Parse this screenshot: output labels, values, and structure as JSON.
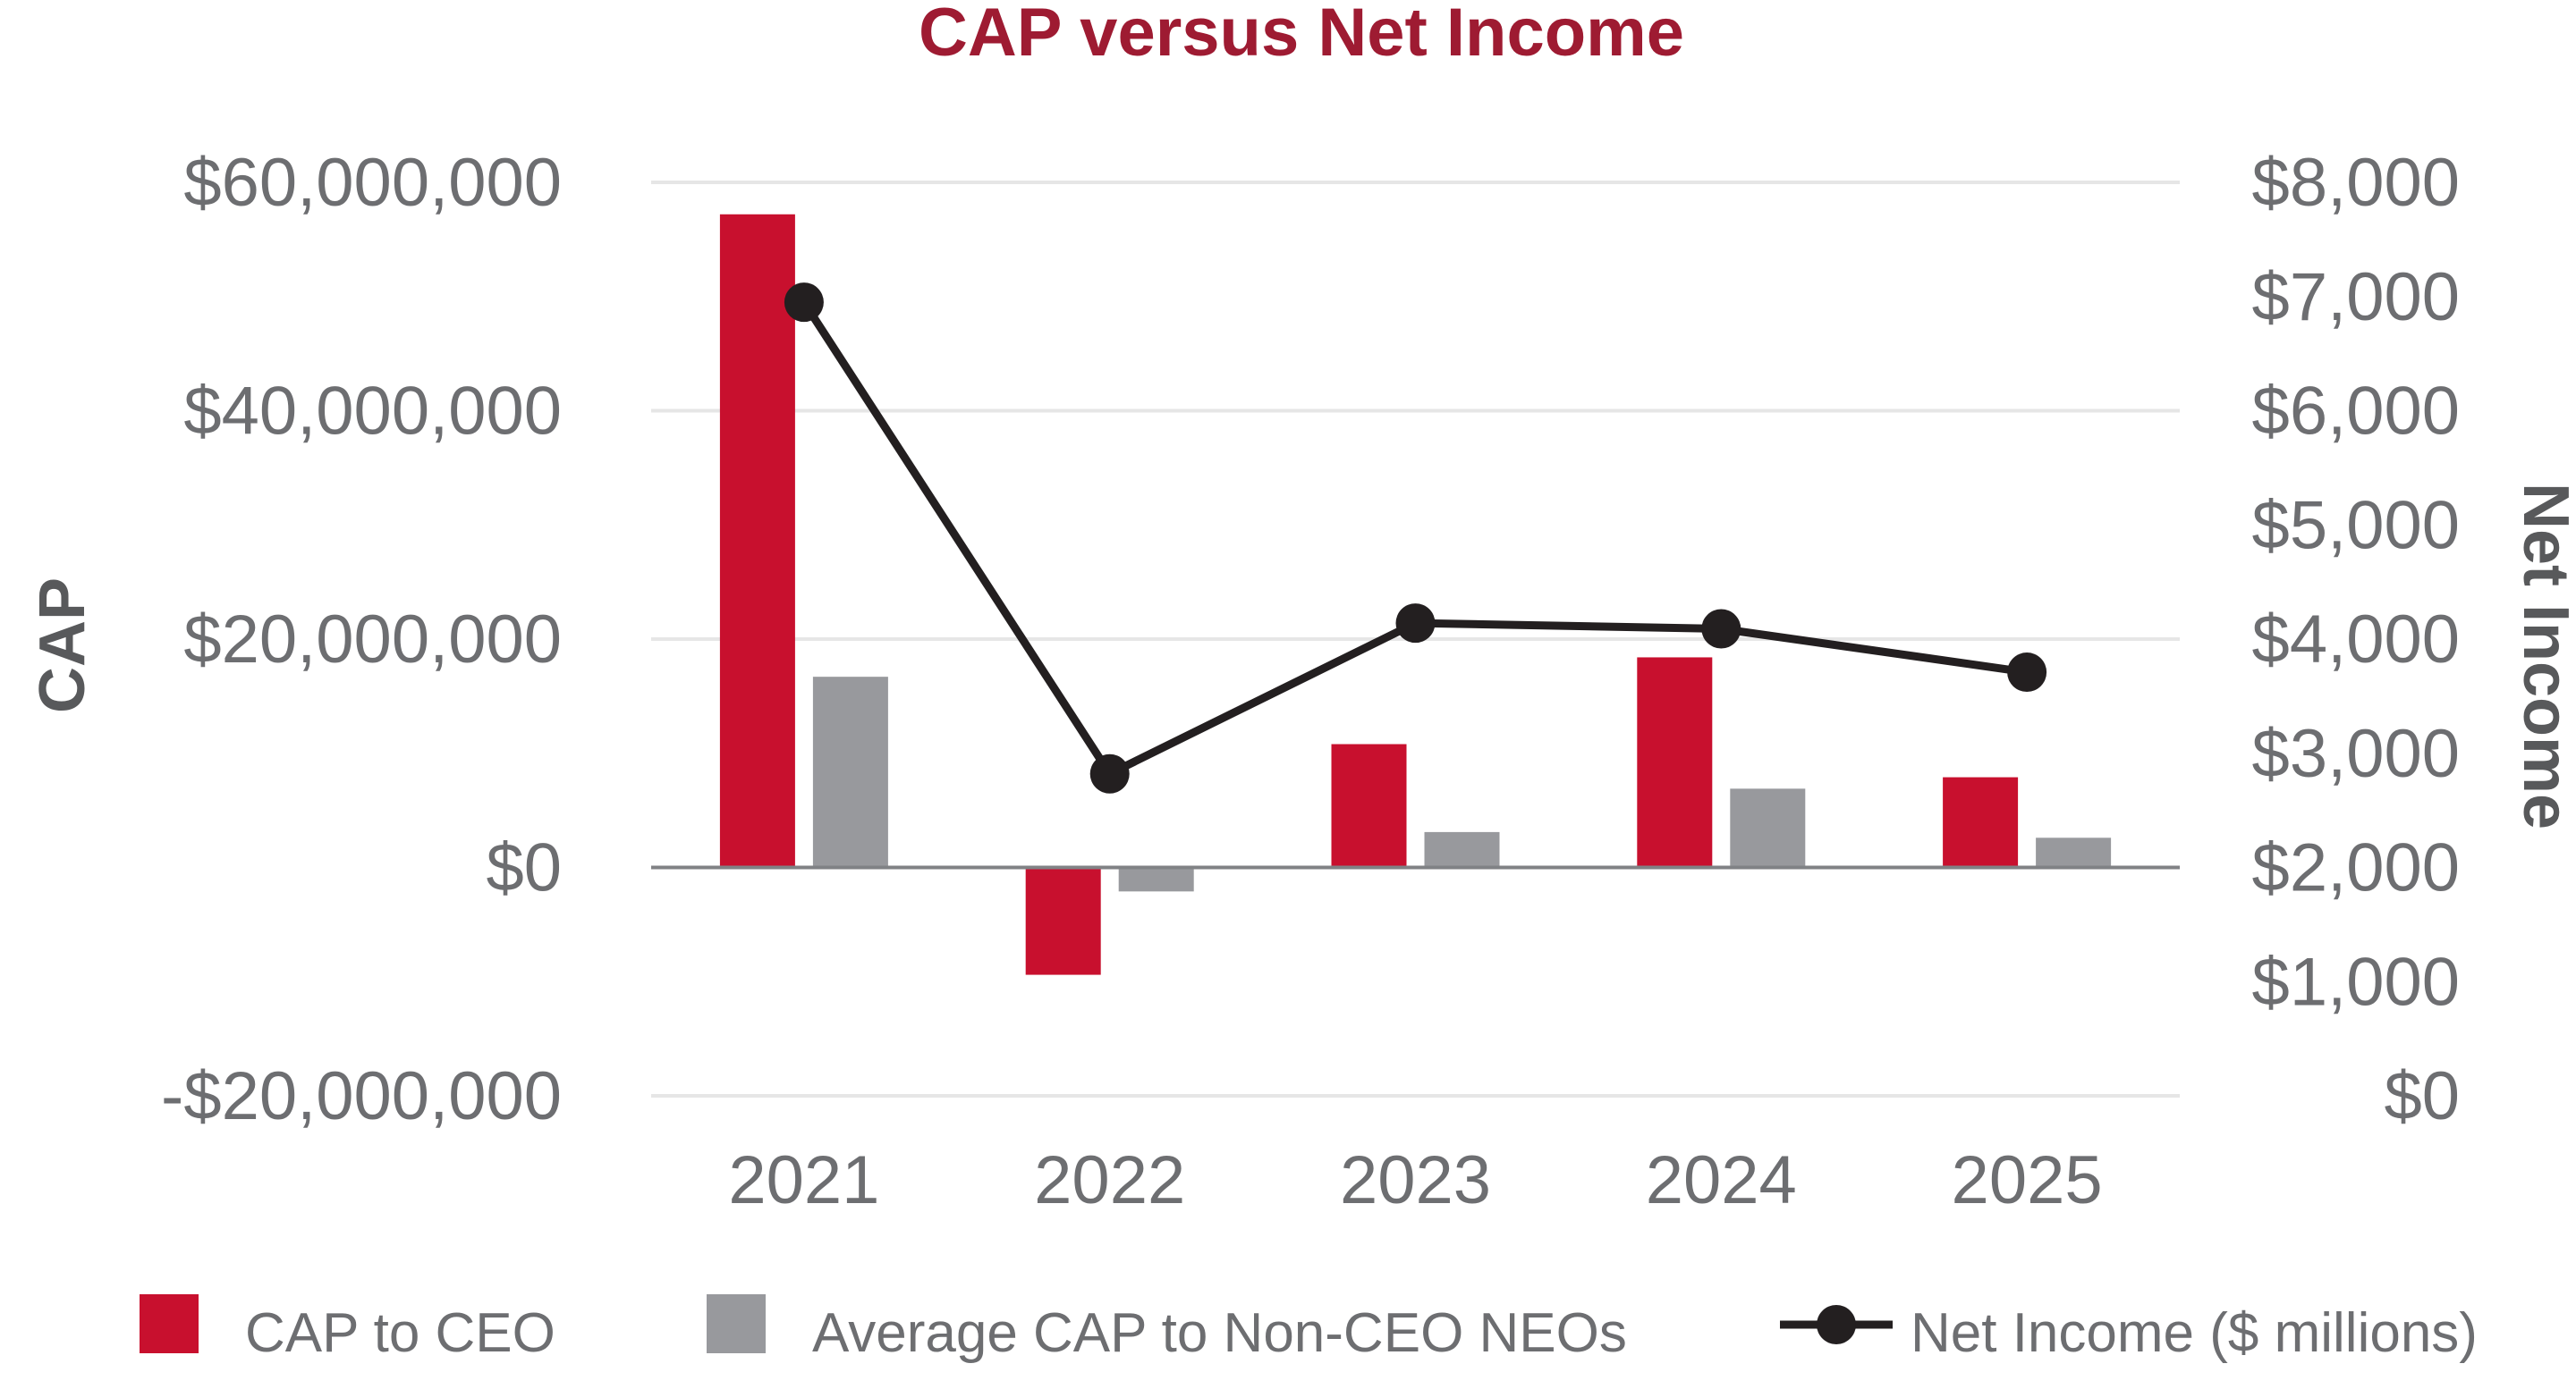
{
  "chart_data": {
    "type": "bar",
    "title": "CAP versus Net Income",
    "categories": [
      "2021",
      "2022",
      "2023",
      "2024",
      "2025"
    ],
    "series": [
      {
        "name": "CAP to CEO",
        "type": "bar",
        "axis": "left",
        "color": "#c8102e",
        "values": [
          57200000,
          -9400000,
          10800000,
          18400000,
          7900000
        ]
      },
      {
        "name": "Average CAP to Non-CEO NEOs",
        "type": "bar",
        "axis": "left",
        "color": "#98999d",
        "values": [
          16700000,
          -2100000,
          3100000,
          6900000,
          2600000
        ]
      },
      {
        "name": "Net Income ($ millions)",
        "type": "line",
        "axis": "right",
        "color": "#231f20",
        "values": [
          6950,
          2820,
          4140,
          4090,
          3710
        ]
      }
    ],
    "y_left": {
      "label": "CAP",
      "range": [
        -20000000,
        60000000
      ],
      "ticks": [
        {
          "value": 60000000,
          "label": "$60,000,000"
        },
        {
          "value": 40000000,
          "label": "$40,000,000"
        },
        {
          "value": 20000000,
          "label": "$20,000,000"
        },
        {
          "value": 0,
          "label": "$0"
        },
        {
          "value": -20000000,
          "label": "-$20,000,000"
        }
      ]
    },
    "y_right": {
      "label": "Net Income",
      "range": [
        0,
        8000
      ],
      "ticks": [
        {
          "value": 8000,
          "label": "$8,000"
        },
        {
          "value": 7000,
          "label": "$7,000"
        },
        {
          "value": 6000,
          "label": "$6,000"
        },
        {
          "value": 5000,
          "label": "$5,000"
        },
        {
          "value": 4000,
          "label": "$4,000"
        },
        {
          "value": 3000,
          "label": "$3,000"
        },
        {
          "value": 2000,
          "label": "$2,000"
        },
        {
          "value": 1000,
          "label": "$1,000"
        },
        {
          "value": 0,
          "label": "$0"
        }
      ]
    },
    "grid": true,
    "legend_position": "bottom",
    "colors": {
      "title": "#9e1b32",
      "tick_text": "#6d6e71",
      "axis_title": "#58595b",
      "gridline": "#e6e6e6",
      "zero_line": "#808285"
    }
  }
}
